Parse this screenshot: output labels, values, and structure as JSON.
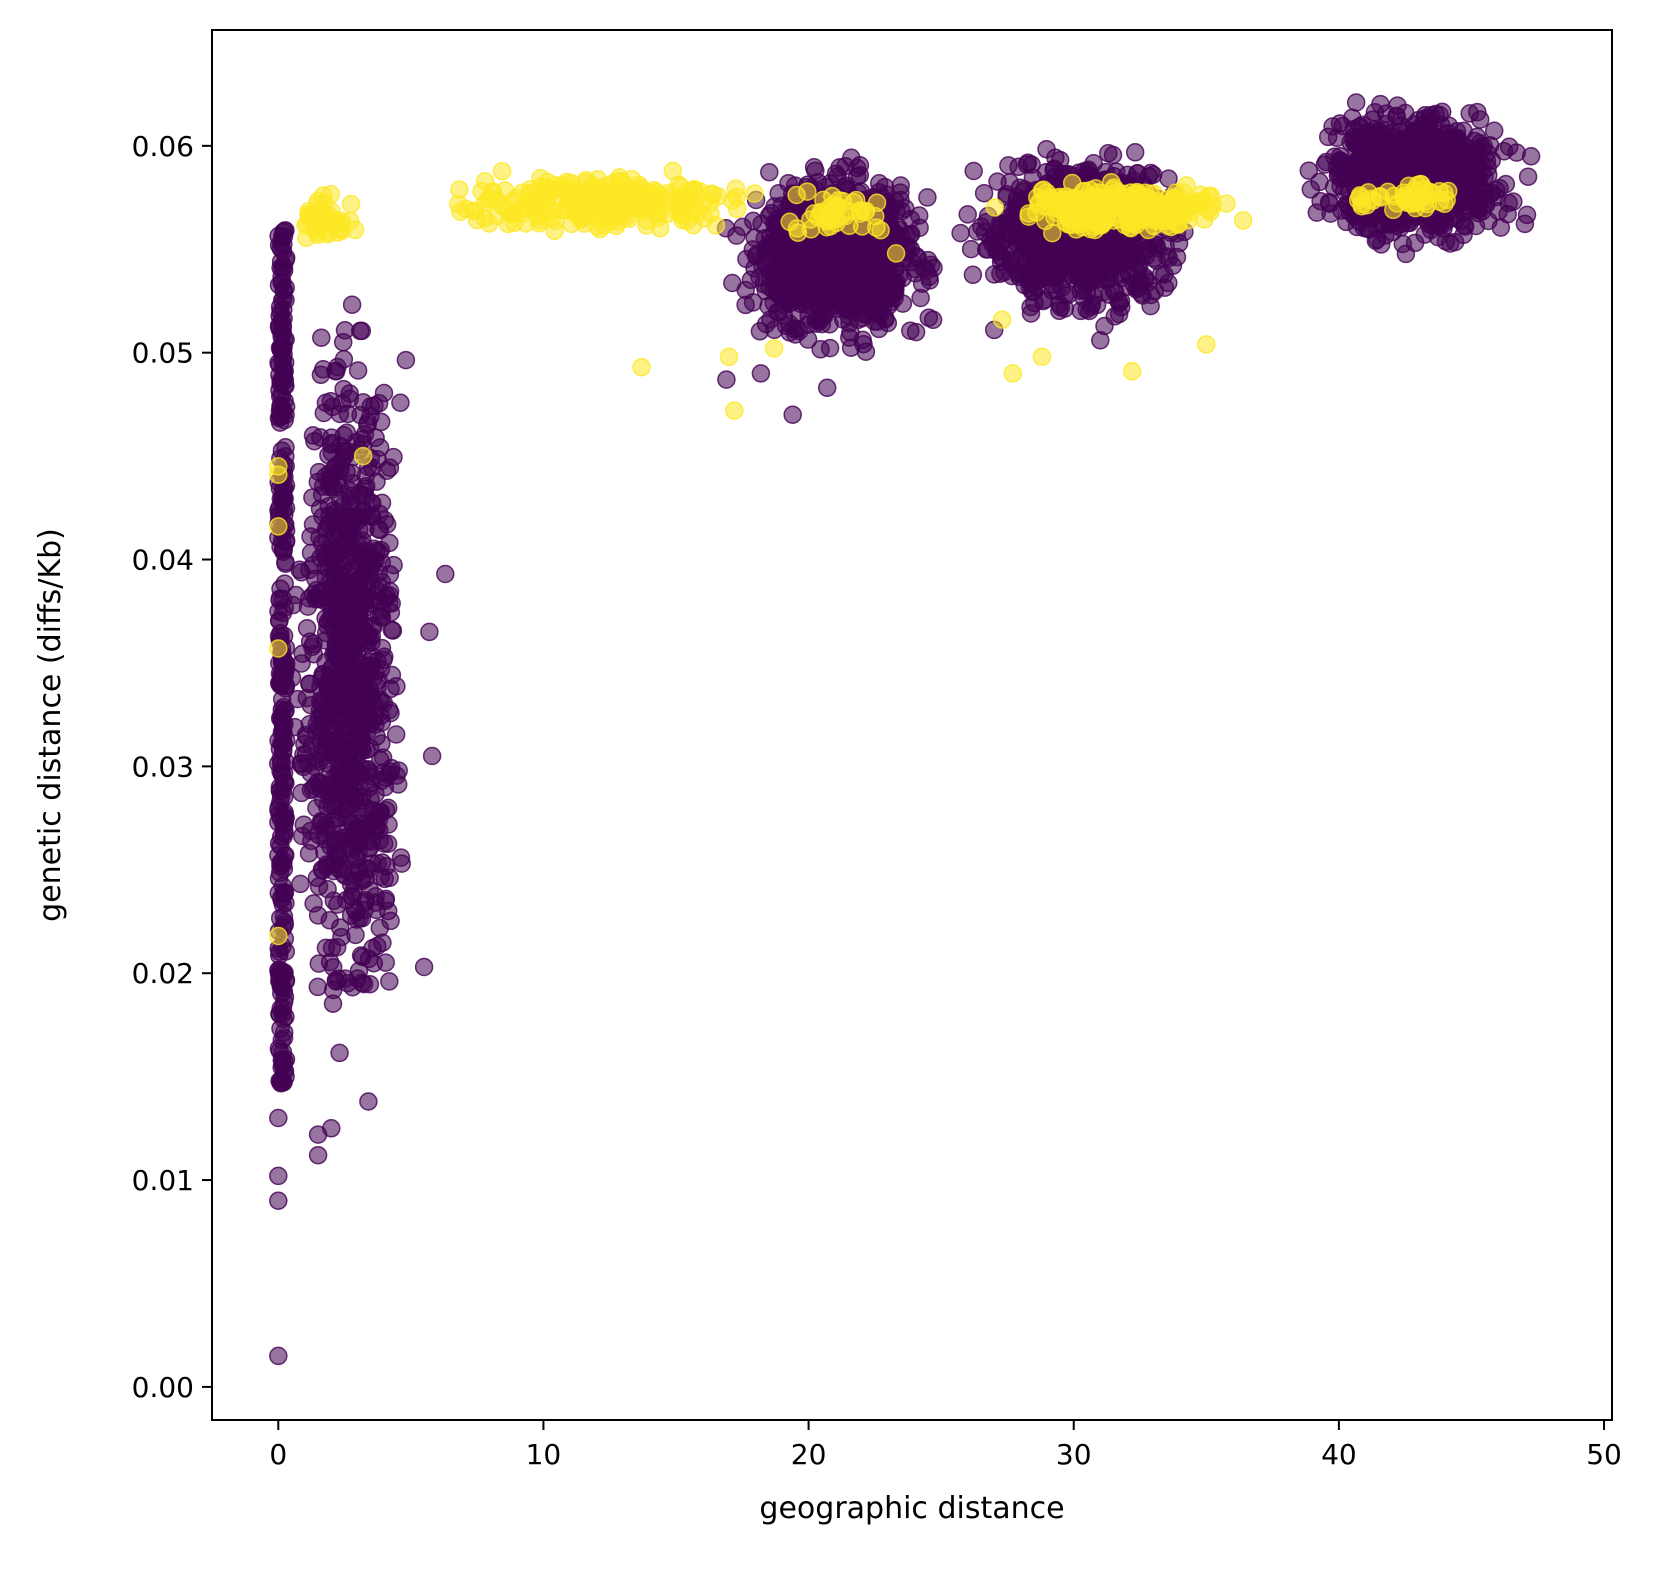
{
  "chart_data": {
    "type": "scatter",
    "title": "",
    "xlabel": "geographic distance",
    "ylabel": "genetic distance (diffs/Kb)",
    "xlim": [
      -2.5,
      50.3
    ],
    "ylim": [
      -0.0016,
      0.0656
    ],
    "x_ticks": [
      0,
      10,
      20,
      30,
      40,
      50
    ],
    "y_ticks": [
      0.0,
      0.01,
      0.02,
      0.03,
      0.04,
      0.05,
      0.06
    ],
    "x_tick_labels": [
      "0",
      "10",
      "20",
      "30",
      "40",
      "50"
    ],
    "y_tick_labels": [
      "0.00",
      "0.01",
      "0.02",
      "0.03",
      "0.04",
      "0.05",
      "0.06"
    ],
    "grid": false,
    "legend": "none",
    "marker_alpha": 0.55,
    "series": [
      {
        "color": "#440154",
        "clusters": [
          {
            "x_range": [
              0,
              0.3
            ],
            "y_range": [
              0.0145,
              0.056
            ],
            "density": "dense column"
          },
          {
            "x_range": [
              0.3,
              5.0
            ],
            "y_range": [
              0.014,
              0.055
            ],
            "density": "dense"
          },
          {
            "x_range": [
              16.5,
              25.5
            ],
            "y_range": [
              0.0495,
              0.06
            ],
            "density": "dense"
          },
          {
            "x_range": [
              25.5,
              35.0
            ],
            "y_range": [
              0.051,
              0.0605
            ],
            "density": "dense"
          },
          {
            "x_range": [
              38.5,
              47.5
            ],
            "y_range": [
              0.0545,
              0.0625
            ],
            "density": "dense"
          }
        ],
        "outliers": [
          {
            "x": 0,
            "y": 0.0015
          },
          {
            "x": 0,
            "y": 0.009
          },
          {
            "x": 0,
            "y": 0.0102
          },
          {
            "x": 0,
            "y": 0.013
          },
          {
            "x": 1.5,
            "y": 0.0112
          },
          {
            "x": 1.5,
            "y": 0.0122
          },
          {
            "x": 2.0,
            "y": 0.0125
          },
          {
            "x": 3.4,
            "y": 0.0138
          },
          {
            "x": 5.5,
            "y": 0.0203
          },
          {
            "x": 5.8,
            "y": 0.0305
          },
          {
            "x": 6.3,
            "y": 0.0393
          },
          {
            "x": 5.7,
            "y": 0.0365
          },
          {
            "x": 19.4,
            "y": 0.047
          },
          {
            "x": 20.7,
            "y": 0.0483
          },
          {
            "x": 16.9,
            "y": 0.0487
          },
          {
            "x": 18.2,
            "y": 0.049
          },
          {
            "x": 27.0,
            "y": 0.0511
          },
          {
            "x": 31.0,
            "y": 0.0506
          }
        ]
      },
      {
        "color": "#fde725",
        "clusters": [
          {
            "x_range": [
              0,
              3.4
            ],
            "y_range": [
              0.055,
              0.058
            ],
            "density": "sparse"
          },
          {
            "x_range": [
              5.2,
              19.0
            ],
            "y_range": [
              0.0555,
              0.059
            ],
            "density": "band"
          },
          {
            "x_range": [
              18.5,
              24.0
            ],
            "y_range": [
              0.0555,
              0.058
            ],
            "density": "sparse"
          },
          {
            "x_range": [
              26.5,
              37.0
            ],
            "y_range": [
              0.0555,
              0.0585
            ],
            "density": "band"
          },
          {
            "x_range": [
              40.0,
              45.0
            ],
            "y_range": [
              0.0565,
              0.0585
            ],
            "density": "sparse"
          }
        ],
        "outliers": [
          {
            "x": 0,
            "y": 0.0445
          },
          {
            "x": 0,
            "y": 0.0441
          },
          {
            "x": 0,
            "y": 0.0416
          },
          {
            "x": 0,
            "y": 0.0357
          },
          {
            "x": 0,
            "y": 0.0218
          },
          {
            "x": 3.2,
            "y": 0.045
          },
          {
            "x": 13.7,
            "y": 0.0493
          },
          {
            "x": 17.2,
            "y": 0.0472
          },
          {
            "x": 17.0,
            "y": 0.0498
          },
          {
            "x": 18.7,
            "y": 0.0502
          },
          {
            "x": 27.7,
            "y": 0.049
          },
          {
            "x": 28.8,
            "y": 0.0498
          },
          {
            "x": 32.2,
            "y": 0.0491
          },
          {
            "x": 35.0,
            "y": 0.0504
          },
          {
            "x": 27.3,
            "y": 0.0516
          },
          {
            "x": 23.3,
            "y": 0.0548
          },
          {
            "x": 19.6,
            "y": 0.0558
          }
        ]
      }
    ]
  }
}
